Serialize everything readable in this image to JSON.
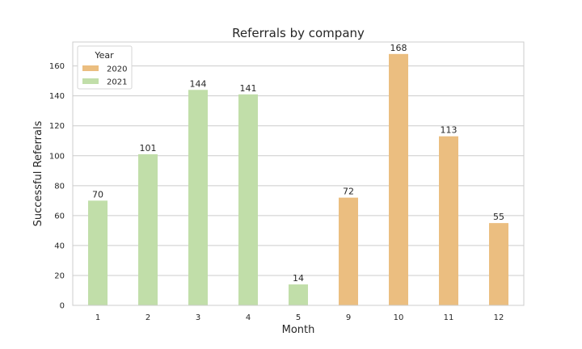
{
  "chart_data": {
    "type": "bar",
    "title": "Referrals by company",
    "xlabel": "Month",
    "ylabel": "Successful Referrals",
    "ylim": [
      0,
      176
    ],
    "yticks": [
      0,
      20,
      40,
      60,
      80,
      100,
      120,
      140,
      160
    ],
    "grid": true,
    "categories": [
      "1",
      "2",
      "3",
      "4",
      "5",
      "9",
      "10",
      "11",
      "12"
    ],
    "series": [
      {
        "name": "2020",
        "color": "#ebbe80",
        "values": [
          null,
          null,
          null,
          null,
          null,
          72,
          168,
          113,
          55
        ]
      },
      {
        "name": "2021",
        "color": "#c1dea9",
        "values": [
          70,
          101,
          144,
          141,
          14,
          null,
          null,
          null,
          null
        ]
      }
    ],
    "legend": {
      "title": "Year",
      "placement": "top-left"
    }
  }
}
